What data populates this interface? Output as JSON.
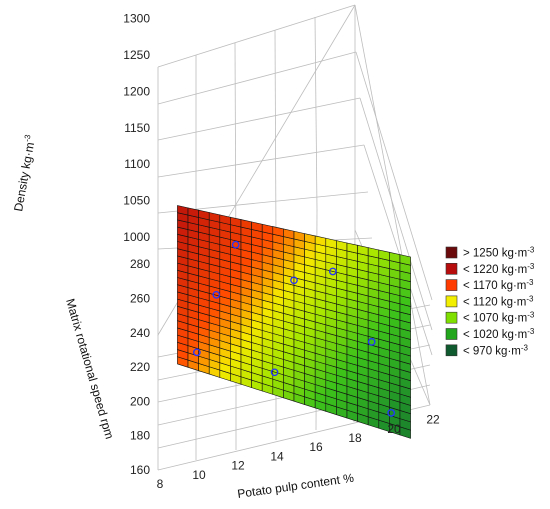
{
  "chart_data": {
    "type": "surface3d",
    "title": "",
    "xlabel": "Potato pulp content %",
    "ylabel": "Matrix rotational speed rpm",
    "zlabel": "Density kg·m",
    "zlabel_sup": "-3",
    "x_ticks": [
      "8",
      "10",
      "12",
      "14",
      "16",
      "18",
      "20",
      "22"
    ],
    "y_ticks": [
      "160",
      "180",
      "200",
      "220",
      "240",
      "260",
      "280"
    ],
    "z_ticks": [
      "1000",
      "1050",
      "1100",
      "1150",
      "1200",
      "1250",
      "1300"
    ],
    "xlim": [
      8,
      22
    ],
    "ylim": [
      160,
      280
    ],
    "zlim": [
      950,
      1300
    ],
    "surface": {
      "x_range": [
        9,
        21
      ],
      "y_range": [
        170,
        270
      ],
      "corners": [
        {
          "x": 9,
          "y": 170,
          "z": 1120
        },
        {
          "x": 21,
          "y": 170,
          "z": 950
        },
        {
          "x": 9,
          "y": 270,
          "z": 1180
        },
        {
          "x": 21,
          "y": 270,
          "z": 1040
        }
      ],
      "grid_divisions": 22
    },
    "points": [
      {
        "x": 10,
        "y": 200,
        "z": 1085
      },
      {
        "x": 12,
        "y": 250,
        "z": 1140
      },
      {
        "x": 14,
        "y": 210,
        "z": 1020
      },
      {
        "x": 15,
        "y": 240,
        "z": 1090
      },
      {
        "x": 17,
        "y": 260,
        "z": 1060
      },
      {
        "x": 19,
        "y": 230,
        "z": 1000
      },
      {
        "x": 20,
        "y": 190,
        "z": 960
      },
      {
        "x": 11,
        "y": 230,
        "z": 1110
      }
    ],
    "legend": {
      "position": "right",
      "entries": [
        {
          "label": "> 1250 kg·m",
          "sup": "-3",
          "color": "#6b0a0a"
        },
        {
          "label": "< 1220 kg·m",
          "sup": "-3",
          "color": "#b80d0d"
        },
        {
          "label": "< 1170 kg·m",
          "sup": "-3",
          "color": "#ff3b00"
        },
        {
          "label": "< 1120 kg·m",
          "sup": "-3",
          "color": "#f3ef00"
        },
        {
          "label": "< 1070 kg·m",
          "sup": "-3",
          "color": "#7fe000"
        },
        {
          "label": "< 1020 kg·m",
          "sup": "-3",
          "color": "#22a61b"
        },
        {
          "label": "< 970 kg·m",
          "sup": "-3",
          "color": "#0f5a2e"
        }
      ]
    }
  }
}
